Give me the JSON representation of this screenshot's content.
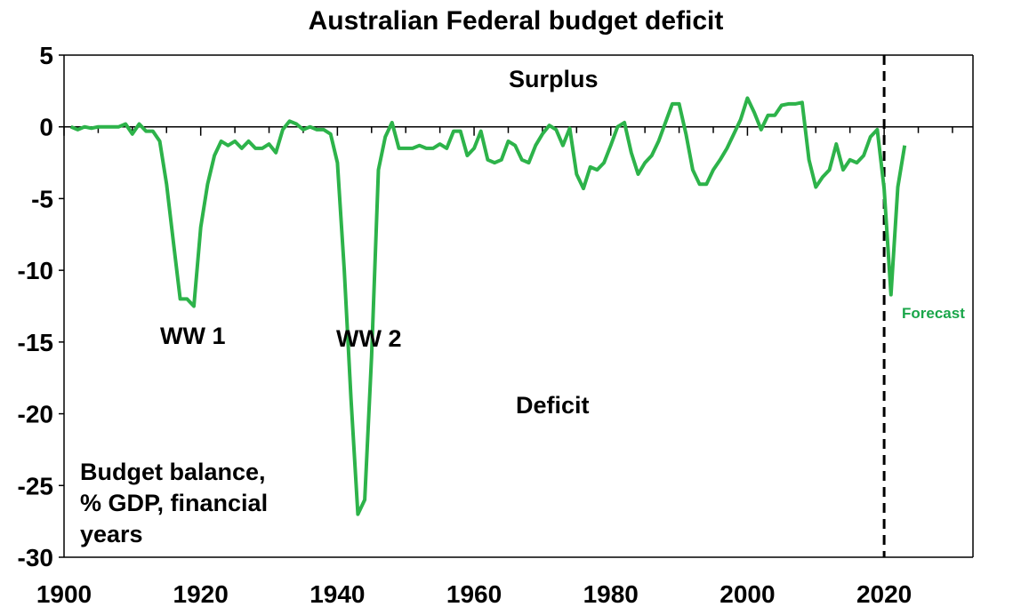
{
  "chart_data": {
    "type": "line",
    "title": "Australian Federal budget deficit",
    "xlim": [
      1900,
      2033
    ],
    "ylim": [
      -30,
      5
    ],
    "x_ticks": [
      1900,
      1920,
      1940,
      1960,
      1980,
      2000,
      2020
    ],
    "y_ticks": [
      5,
      0,
      -5,
      -10,
      -15,
      -20,
      -25,
      -30
    ],
    "grid": false,
    "legend": "none",
    "line_color": "#2db34a",
    "series": [
      {
        "x": [
          1901,
          1902,
          1903,
          1904,
          1905,
          1906,
          1907,
          1908,
          1909,
          1910,
          1911,
          1912,
          1913,
          1914,
          1915,
          1916,
          1917,
          1918,
          1919,
          1920,
          1921,
          1922,
          1923,
          1924,
          1925,
          1926,
          1927,
          1928,
          1929,
          1930,
          1931,
          1932,
          1933,
          1934,
          1935,
          1936,
          1937,
          1938,
          1939,
          1940,
          1941,
          1942,
          1943,
          1944,
          1945,
          1946,
          1947,
          1948,
          1949,
          1950,
          1951,
          1952,
          1953,
          1954,
          1955,
          1956,
          1957,
          1958,
          1959,
          1960,
          1961,
          1962,
          1963,
          1964,
          1965,
          1966,
          1967,
          1968,
          1969,
          1970,
          1971,
          1972,
          1973,
          1974,
          1975,
          1976,
          1977,
          1978,
          1979,
          1980,
          1981,
          1982,
          1983,
          1984,
          1985,
          1986,
          1987,
          1988,
          1989,
          1990,
          1991,
          1992,
          1993,
          1994,
          1995,
          1996,
          1997,
          1998,
          1999,
          2000,
          2001,
          2002,
          2003,
          2004,
          2005,
          2006,
          2007,
          2008,
          2009,
          2010,
          2011,
          2012,
          2013,
          2014,
          2015,
          2016,
          2017,
          2018,
          2019,
          2020,
          2021,
          2022,
          2023
        ],
        "y": [
          0,
          -0.2,
          0,
          -0.1,
          0,
          0,
          0,
          0,
          0.2,
          -0.5,
          0.2,
          -0.3,
          -0.3,
          -1,
          -4,
          -8,
          -12,
          -12,
          -12.5,
          -7,
          -4,
          -2,
          -1,
          -1.3,
          -1,
          -1.5,
          -1,
          -1.5,
          -1.5,
          -1.2,
          -1.8,
          -0.2,
          0.4,
          0.2,
          -0.2,
          0,
          -0.2,
          -0.2,
          -0.5,
          -2.5,
          -10,
          -19,
          -27,
          -26,
          -16,
          -3,
          -0.7,
          0.3,
          -1.5,
          -1.5,
          -1.5,
          -1.3,
          -1.5,
          -1.5,
          -1.2,
          -1.5,
          -0.3,
          -0.3,
          -2,
          -1.5,
          -0.3,
          -2.3,
          -2.5,
          -2.3,
          -1,
          -1.3,
          -2.3,
          -2.5,
          -1.3,
          -0.5,
          0.1,
          -0.2,
          -1.3,
          -0.1,
          -3.3,
          -4.3,
          -2.8,
          -3,
          -2.5,
          -1.3,
          0,
          0.3,
          -1.8,
          -3.3,
          -2.5,
          -2,
          -1,
          0.3,
          1.6,
          1.6,
          -0.5,
          -3,
          -4,
          -4,
          -3,
          -2.3,
          -1.5,
          -0.5,
          0.5,
          2,
          1,
          -0.2,
          0.8,
          0.8,
          1.5,
          1.6,
          1.6,
          1.7,
          -2.3,
          -4.2,
          -3.5,
          -3,
          -1.2,
          -3,
          -2.3,
          -2.5,
          -2,
          -0.7,
          -0.2,
          -4.3,
          -11.7,
          -4.2,
          -1.3
        ]
      }
    ],
    "annotations": {
      "surplus": "Surplus",
      "deficit": "Deficit",
      "ww1": "WW 1",
      "ww2": "WW 2",
      "forecast": "Forecast",
      "units_line1": "Budget balance,",
      "units_line2": "% GDP, financial",
      "units_line3": "years"
    },
    "forecast_start_year": 2020
  }
}
